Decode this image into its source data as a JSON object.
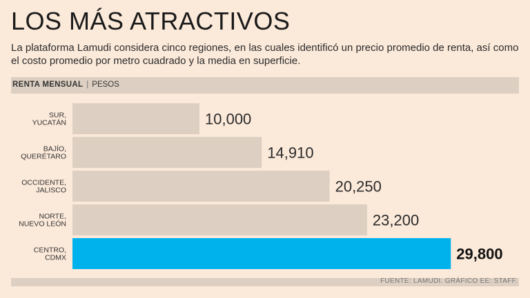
{
  "header": {
    "title": "LOS MÁS ATRACTIVOS",
    "subtitle": "La plataforma Lamudi considera cinco regiones, en las cuales identificó un precio promedio de renta, así como el costo promedio por metro cuadrado y la media en superficie."
  },
  "chart_header": {
    "label": "RENTA MENSUAL",
    "unit": "PESOS"
  },
  "footer": {
    "source": "FUENTE: LAMUDI.  GRÁFICO EE: STAFF."
  },
  "colors": {
    "background": "#fbe9d9",
    "bar": "#ddd0c2",
    "highlight": "#00b2ec"
  },
  "chart_data": {
    "type": "bar",
    "orientation": "horizontal",
    "title": "RENTA MENSUAL",
    "xlabel": "",
    "ylabel": "PESOS",
    "categories": [
      [
        "SUR,",
        "YUCATÁN"
      ],
      [
        "BAJÍO,",
        "QUERÉTARO"
      ],
      [
        "OCCIDENTE,",
        "JALISCO"
      ],
      [
        "NORTE,",
        "NUEVO LEÓN"
      ],
      [
        "CENTRO,",
        "CDMX"
      ]
    ],
    "values": [
      10000,
      14910,
      20250,
      23200,
      29800
    ],
    "value_labels": [
      "10,000",
      "14,910",
      "20,250",
      "23,200",
      "29,800"
    ],
    "highlight_index": 4,
    "xlim": [
      0,
      30000
    ]
  }
}
